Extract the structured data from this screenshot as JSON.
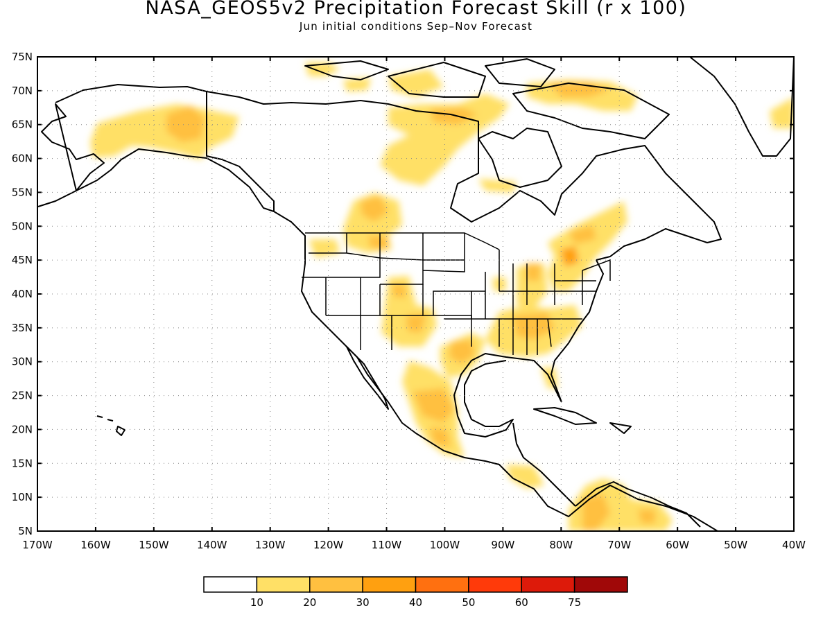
{
  "title": "NASA_GEOS5v2 Precipitation Forecast Skill (r x 100)",
  "subtitle": "Jun initial conditions  Sep–Nov Forecast",
  "map": {
    "lon_range": [
      -170,
      -40
    ],
    "lat_range": [
      5,
      75
    ],
    "lat_ticks": [
      "5N",
      "10N",
      "15N",
      "20N",
      "25N",
      "30N",
      "35N",
      "40N",
      "45N",
      "50N",
      "55N",
      "60N",
      "65N",
      "70N",
      "75N"
    ],
    "lon_ticks": [
      "170W",
      "160W",
      "150W",
      "140W",
      "130W",
      "120W",
      "110W",
      "100W",
      "90W",
      "80W",
      "70W",
      "60W",
      "50W",
      "40W"
    ],
    "grid": "dotted",
    "region": "North America"
  },
  "legend": {
    "colors": [
      "#ffffff",
      "#ffe066",
      "#ffc040",
      "#ffa010",
      "#ff7010",
      "#ff3a0a",
      "#dd1a0a",
      "#a00808"
    ],
    "labels": [
      "10",
      "20",
      "30",
      "40",
      "50",
      "60",
      "75"
    ]
  },
  "skill_areas": [
    {
      "region": "Alaska",
      "lon": -145,
      "lat": 65,
      "level": 2
    },
    {
      "region": "Nunavut",
      "lon": -97,
      "lat": 66,
      "level": 1
    },
    {
      "region": "Northern Quebec",
      "lon": -75,
      "lat": 68,
      "level": 1
    },
    {
      "region": "Alberta",
      "lon": -115,
      "lat": 52,
      "level": 2
    },
    {
      "region": "Mexico",
      "lon": -103,
      "lat": 24,
      "level": 2
    },
    {
      "region": "Texas",
      "lon": -98,
      "lat": 31,
      "level": 2
    },
    {
      "region": "Great Lakes",
      "lon": -80,
      "lat": 45,
      "level": 3
    },
    {
      "region": "Southeast US",
      "lon": -87,
      "lat": 34,
      "level": 2
    },
    {
      "region": "Northern South America",
      "lon": -73,
      "lat": 8,
      "level": 2
    }
  ]
}
